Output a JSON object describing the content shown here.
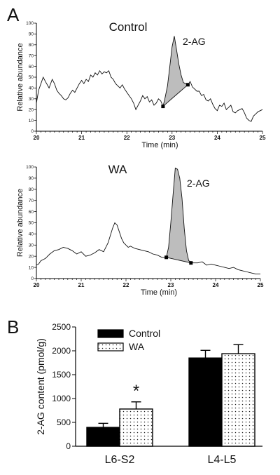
{
  "panel_a_label": "A",
  "panel_b_label": "B",
  "chart_data": [
    {
      "type": "line",
      "title": "Control",
      "xlabel": "Time (min)",
      "ylabel": "Relative abundance",
      "xlim": [
        20,
        25
      ],
      "ylim": [
        0,
        100
      ],
      "xticks": [
        "20",
        "21",
        "22",
        "23",
        "24",
        "25"
      ],
      "yticks": [
        "0",
        "10",
        "20",
        "30",
        "40",
        "50",
        "60",
        "70",
        "80",
        "90",
        "100"
      ],
      "peak_label": "2-AG",
      "peak_shaded": true,
      "peak_baseline": [
        [
          22.8,
          23
        ],
        [
          23.35,
          43
        ]
      ],
      "series": [
        {
          "x": [
            20.0,
            20.05,
            20.1,
            20.15,
            20.2,
            20.28,
            20.35,
            20.4,
            20.45,
            20.5,
            20.55,
            20.6,
            20.65,
            20.7,
            20.75,
            20.8,
            20.85,
            20.9,
            20.95,
            21.0,
            21.05,
            21.1,
            21.15,
            21.2,
            21.25,
            21.3,
            21.35,
            21.4,
            21.45,
            21.5,
            21.55,
            21.6,
            21.65,
            21.7,
            21.75,
            21.8,
            21.85,
            21.9,
            21.95,
            22.0,
            22.05,
            22.1,
            22.15,
            22.2,
            22.25,
            22.3,
            22.35,
            22.4,
            22.45,
            22.5,
            22.55,
            22.6,
            22.65,
            22.7,
            22.75,
            22.78,
            22.8,
            22.84,
            22.9,
            22.95,
            23.0,
            23.05,
            23.1,
            23.15,
            23.2,
            23.25,
            23.3,
            23.35,
            23.4,
            23.45,
            23.5,
            23.55,
            23.6,
            23.65,
            23.7,
            23.75,
            23.8,
            23.85,
            23.9,
            23.95,
            24.0,
            24.05,
            24.1,
            24.15,
            24.2,
            24.25,
            24.3,
            24.35,
            24.4,
            24.45,
            24.5,
            24.55,
            24.6,
            24.65,
            24.7,
            24.75,
            24.8,
            24.85,
            24.9,
            24.95,
            25.0
          ],
          "y": [
            26,
            38,
            44,
            50,
            46,
            40,
            48,
            44,
            38,
            35,
            33,
            30,
            29,
            31,
            35,
            38,
            36,
            40,
            44,
            47,
            44,
            48,
            46,
            52,
            50,
            54,
            52,
            56,
            53,
            55,
            54,
            56,
            50,
            48,
            44,
            42,
            40,
            43,
            39,
            36,
            33,
            30,
            26,
            20,
            24,
            28,
            33,
            30,
            32,
            27,
            29,
            24,
            26,
            30,
            28,
            25,
            23,
            30,
            42,
            60,
            78,
            88,
            75,
            62,
            52,
            45,
            44,
            43,
            46,
            41,
            39,
            37,
            37,
            33,
            34,
            29,
            28,
            30,
            25,
            21,
            19,
            24,
            23,
            26,
            20,
            22,
            24,
            18,
            17,
            19,
            20,
            21,
            17,
            12,
            10,
            9,
            14,
            16,
            18,
            19,
            20
          ]
        }
      ]
    },
    {
      "type": "line",
      "title": "WA",
      "xlabel": "Time (min)",
      "ylabel": "Relative abundance",
      "xlim": [
        20,
        25
      ],
      "ylim": [
        0,
        100
      ],
      "xticks": [
        "20",
        "21",
        "22",
        "23",
        "24",
        "25"
      ],
      "yticks": [
        "0",
        "10",
        "20",
        "30",
        "40",
        "50",
        "60",
        "70",
        "80",
        "90",
        "100"
      ],
      "peak_label": "2-AG",
      "peak_shaded": true,
      "peak_baseline": [
        [
          22.9,
          19
        ],
        [
          23.45,
          14
        ]
      ],
      "series": [
        {
          "x": [
            20.0,
            20.05,
            20.1,
            20.2,
            20.3,
            20.4,
            20.5,
            20.6,
            20.7,
            20.8,
            20.9,
            21.0,
            21.1,
            21.2,
            21.3,
            21.4,
            21.5,
            21.6,
            21.7,
            21.75,
            21.8,
            21.85,
            21.9,
            21.95,
            22.0,
            22.05,
            22.1,
            22.2,
            22.3,
            22.4,
            22.5,
            22.6,
            22.7,
            22.8,
            22.9,
            22.95,
            23.0,
            23.05,
            23.1,
            23.15,
            23.2,
            23.25,
            23.3,
            23.35,
            23.4,
            23.45,
            23.5,
            23.6,
            23.7,
            23.8,
            23.9,
            24.0,
            24.1,
            24.2,
            24.3,
            24.4,
            24.5,
            24.6,
            24.7,
            24.8,
            24.9,
            24.95,
            25.0
          ],
          "y": [
            12,
            13,
            16,
            18,
            22,
            25,
            26,
            28,
            27,
            25,
            22,
            24,
            20,
            21,
            23,
            26,
            24,
            32,
            45,
            50,
            48,
            42,
            36,
            32,
            30,
            28,
            29,
            27,
            26,
            25,
            24,
            22,
            21,
            19,
            19,
            28,
            50,
            75,
            99,
            98,
            90,
            72,
            45,
            25,
            16,
            15,
            14,
            14,
            15,
            12,
            13,
            12,
            11,
            10,
            9,
            10,
            8,
            7,
            6,
            5,
            4,
            4,
            4
          ]
        }
      ]
    },
    {
      "type": "bar",
      "ylabel": "2-AG content (pmol/g)",
      "categories": [
        "L6-S2",
        "L4-L5"
      ],
      "ylim": [
        0,
        2500
      ],
      "yticks": [
        "0",
        "500",
        "1000",
        "1500",
        "2000",
        "2500"
      ],
      "legend_position": "top-left",
      "series": [
        {
          "name": "Control",
          "values": [
            395,
            1850
          ],
          "errors": [
            85,
            160
          ],
          "color": "#000000",
          "pattern": "solid"
        },
        {
          "name": "WA",
          "values": [
            780,
            1940
          ],
          "errors": [
            150,
            190
          ],
          "color": "#ffffff",
          "pattern": "dots"
        }
      ],
      "annotations": [
        {
          "text": "*",
          "category": "L6-S2",
          "series": "WA"
        }
      ]
    }
  ]
}
